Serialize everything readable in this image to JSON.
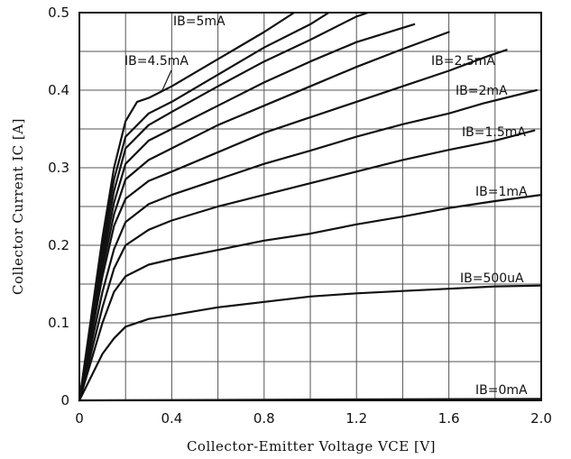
{
  "chart_data": {
    "type": "line",
    "xlabel": "Collector-Emitter Voltage VCE [V]",
    "ylabel": "Collector Current IC [A]",
    "xlim": [
      0,
      2.0
    ],
    "ylim": [
      0,
      0.5
    ],
    "x_ticks": [
      "0",
      "0.4",
      "0.8",
      "1.2",
      "1.6",
      "2.0"
    ],
    "y_ticks": [
      "0",
      "0.1",
      "0.2",
      "0.3",
      "0.4",
      "0.5"
    ],
    "grid": true,
    "series": [
      {
        "name": "IB=0mA",
        "points": [
          [
            0,
            0
          ],
          [
            2.0,
            0.002
          ]
        ]
      },
      {
        "name": "IB=500uA",
        "points": [
          [
            0,
            0
          ],
          [
            0.05,
            0.03
          ],
          [
            0.1,
            0.06
          ],
          [
            0.15,
            0.08
          ],
          [
            0.2,
            0.095
          ],
          [
            0.3,
            0.105
          ],
          [
            0.4,
            0.11
          ],
          [
            0.6,
            0.12
          ],
          [
            0.8,
            0.127
          ],
          [
            1.0,
            0.134
          ],
          [
            1.2,
            0.138
          ],
          [
            1.4,
            0.141
          ],
          [
            1.6,
            0.144
          ],
          [
            1.8,
            0.147
          ],
          [
            2.0,
            0.148
          ]
        ]
      },
      {
        "name": "IB=1mA",
        "points": [
          [
            0,
            0
          ],
          [
            0.05,
            0.05
          ],
          [
            0.1,
            0.1
          ],
          [
            0.15,
            0.14
          ],
          [
            0.2,
            0.16
          ],
          [
            0.3,
            0.175
          ],
          [
            0.4,
            0.182
          ],
          [
            0.6,
            0.194
          ],
          [
            0.8,
            0.206
          ],
          [
            1.0,
            0.215
          ],
          [
            1.2,
            0.227
          ],
          [
            1.4,
            0.237
          ],
          [
            1.6,
            0.248
          ],
          [
            1.8,
            0.257
          ],
          [
            2.0,
            0.265
          ]
        ]
      },
      {
        "name": "IB=1.5mA",
        "points": [
          [
            0,
            0
          ],
          [
            0.05,
            0.06
          ],
          [
            0.1,
            0.12
          ],
          [
            0.15,
            0.17
          ],
          [
            0.2,
            0.2
          ],
          [
            0.3,
            0.22
          ],
          [
            0.4,
            0.232
          ],
          [
            0.6,
            0.25
          ],
          [
            0.8,
            0.265
          ],
          [
            1.0,
            0.28
          ],
          [
            1.2,
            0.295
          ],
          [
            1.4,
            0.31
          ],
          [
            1.6,
            0.323
          ],
          [
            1.8,
            0.335
          ],
          [
            1.97,
            0.348
          ]
        ]
      },
      {
        "name": "IB=2mA",
        "points": [
          [
            0,
            0
          ],
          [
            0.05,
            0.07
          ],
          [
            0.1,
            0.14
          ],
          [
            0.15,
            0.195
          ],
          [
            0.2,
            0.23
          ],
          [
            0.3,
            0.253
          ],
          [
            0.4,
            0.265
          ],
          [
            0.6,
            0.285
          ],
          [
            0.8,
            0.305
          ],
          [
            1.0,
            0.322
          ],
          [
            1.2,
            0.34
          ],
          [
            1.4,
            0.356
          ],
          [
            1.6,
            0.37
          ],
          [
            1.75,
            0.383
          ],
          [
            1.98,
            0.4
          ]
        ]
      },
      {
        "name": "IB=2.5mA",
        "points": [
          [
            0,
            0
          ],
          [
            0.05,
            0.08
          ],
          [
            0.1,
            0.16
          ],
          [
            0.15,
            0.225
          ],
          [
            0.2,
            0.26
          ],
          [
            0.3,
            0.283
          ],
          [
            0.4,
            0.295
          ],
          [
            0.6,
            0.32
          ],
          [
            0.8,
            0.345
          ],
          [
            1.0,
            0.365
          ],
          [
            1.2,
            0.385
          ],
          [
            1.4,
            0.405
          ],
          [
            1.6,
            0.425
          ],
          [
            1.77,
            0.444
          ],
          [
            1.85,
            0.452
          ]
        ]
      },
      {
        "name": "",
        "points": [
          [
            0,
            0
          ],
          [
            0.05,
            0.085
          ],
          [
            0.1,
            0.17
          ],
          [
            0.15,
            0.24
          ],
          [
            0.2,
            0.285
          ],
          [
            0.3,
            0.31
          ],
          [
            0.4,
            0.325
          ],
          [
            0.6,
            0.355
          ],
          [
            0.8,
            0.38
          ],
          [
            1.0,
            0.405
          ],
          [
            1.2,
            0.43
          ],
          [
            1.4,
            0.453
          ],
          [
            1.6,
            0.475
          ]
        ]
      },
      {
        "name": "",
        "points": [
          [
            0,
            0
          ],
          [
            0.05,
            0.09
          ],
          [
            0.1,
            0.18
          ],
          [
            0.15,
            0.255
          ],
          [
            0.2,
            0.305
          ],
          [
            0.3,
            0.335
          ],
          [
            0.4,
            0.35
          ],
          [
            0.6,
            0.38
          ],
          [
            0.8,
            0.41
          ],
          [
            1.0,
            0.437
          ],
          [
            1.2,
            0.462
          ],
          [
            1.45,
            0.485
          ]
        ]
      },
      {
        "name": "",
        "points": [
          [
            0,
            0
          ],
          [
            0.05,
            0.095
          ],
          [
            0.1,
            0.19
          ],
          [
            0.15,
            0.27
          ],
          [
            0.2,
            0.325
          ],
          [
            0.3,
            0.355
          ],
          [
            0.4,
            0.372
          ],
          [
            0.6,
            0.405
          ],
          [
            0.8,
            0.437
          ],
          [
            1.0,
            0.465
          ],
          [
            1.2,
            0.495
          ],
          [
            1.25,
            0.5
          ]
        ]
      },
      {
        "name": "IB=4.5mA",
        "points": [
          [
            0,
            0
          ],
          [
            0.05,
            0.1
          ],
          [
            0.1,
            0.2
          ],
          [
            0.15,
            0.285
          ],
          [
            0.2,
            0.34
          ],
          [
            0.3,
            0.37
          ],
          [
            0.4,
            0.385
          ],
          [
            0.6,
            0.42
          ],
          [
            0.8,
            0.455
          ],
          [
            1.0,
            0.485
          ],
          [
            1.08,
            0.5
          ]
        ]
      },
      {
        "name": "IB=5mA",
        "points": [
          [
            0,
            0
          ],
          [
            0.05,
            0.105
          ],
          [
            0.1,
            0.21
          ],
          [
            0.15,
            0.3
          ],
          [
            0.2,
            0.36
          ],
          [
            0.25,
            0.385
          ],
          [
            0.3,
            0.39
          ],
          [
            0.4,
            0.405
          ],
          [
            0.6,
            0.44
          ],
          [
            0.8,
            0.475
          ],
          [
            0.93,
            0.5
          ]
        ]
      }
    ]
  }
}
